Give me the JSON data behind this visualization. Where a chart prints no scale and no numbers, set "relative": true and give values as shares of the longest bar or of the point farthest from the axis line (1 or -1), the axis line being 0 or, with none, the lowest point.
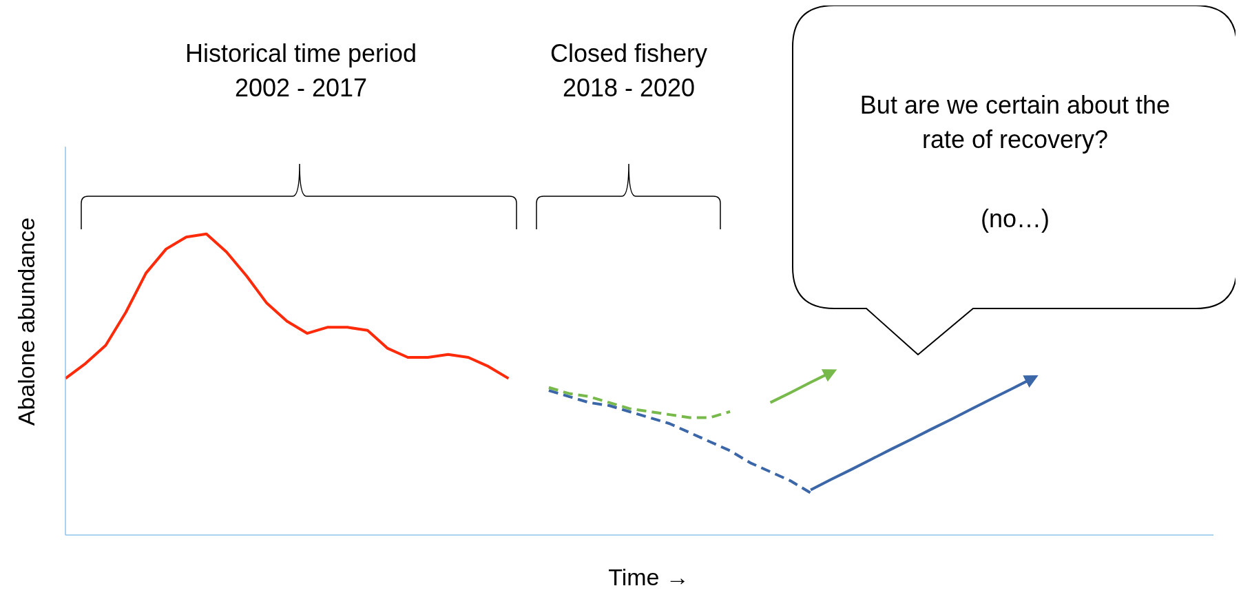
{
  "chart_data": {
    "type": "line",
    "relative": true,
    "xlabel": "Time →",
    "ylabel": "Abalone abundance",
    "grid": false,
    "legend": false,
    "marker": "none",
    "annotations": [
      "Historical time period\n2002 - 2017",
      "Closed fishery\n2018 - 2020",
      "But are we certain about the\nrate of recovery?",
      "(no…)"
    ],
    "categories": [
      null,
      null,
      null,
      null,
      null,
      null,
      null,
      null,
      null,
      null,
      null,
      null,
      null,
      null,
      null,
      null,
      null,
      null,
      null,
      null,
      null,
      null,
      null,
      null,
      null,
      null,
      null,
      null,
      null,
      null,
      null,
      null,
      null,
      null,
      null,
      null,
      null,
      null,
      null,
      null,
      null,
      null,
      null,
      null,
      null,
      null,
      null,
      null,
      null,
      null,
      null,
      null,
      null,
      null,
      null,
      null,
      null,
      null
    ],
    "series": [
      {
        "color": "#fe2a0a",
        "line_style": "solid",
        "values": [
          0.52,
          0.57,
          0.63,
          0.74,
          0.87,
          0.95,
          0.99,
          1,
          0.94,
          0.86,
          0.77,
          0.71,
          0.67,
          0.69,
          0.69,
          0.68,
          0.62,
          0.59,
          0.59,
          0.6,
          0.59,
          0.56,
          0.52,
          null,
          null,
          null,
          null,
          null,
          null,
          null,
          null,
          null,
          null,
          null,
          null,
          null,
          null,
          null,
          null,
          null,
          null,
          null,
          null,
          null,
          null,
          null,
          null,
          null,
          null,
          null,
          null,
          null,
          null,
          null,
          null,
          null,
          null,
          null
        ]
      },
      {
        "color": "#77b94a",
        "line_style": "dashed",
        "values": [
          null,
          null,
          null,
          null,
          null,
          null,
          null,
          null,
          null,
          null,
          null,
          null,
          null,
          null,
          null,
          null,
          null,
          null,
          null,
          null,
          null,
          null,
          null,
          null,
          0.49,
          0.47,
          0.46,
          0.44,
          0.42,
          0.41,
          0.4,
          0.39,
          0.39,
          0.41,
          null,
          null,
          null,
          null,
          null,
          null,
          null,
          null,
          null,
          null,
          null,
          null,
          null,
          null,
          null,
          null,
          null,
          null,
          null,
          null,
          null,
          null,
          null,
          null
        ]
      },
      {
        "color": "#77b94a",
        "line_style": "solid",
        "values": [
          null,
          null,
          null,
          null,
          null,
          null,
          null,
          null,
          null,
          null,
          null,
          null,
          null,
          null,
          null,
          null,
          null,
          null,
          null,
          null,
          null,
          null,
          null,
          null,
          null,
          null,
          null,
          null,
          null,
          null,
          null,
          null,
          null,
          null,
          null,
          0.44,
          0.473,
          0.507,
          0.54,
          null,
          null,
          null,
          null,
          null,
          null,
          null,
          null,
          null,
          null,
          null,
          null,
          null,
          null,
          null,
          null,
          null,
          null,
          null
        ]
      },
      {
        "color": "#3b66a8",
        "line_style": "dashed",
        "values": [
          null,
          null,
          null,
          null,
          null,
          null,
          null,
          null,
          null,
          null,
          null,
          null,
          null,
          null,
          null,
          null,
          null,
          null,
          null,
          null,
          null,
          null,
          null,
          null,
          0.48,
          0.46,
          0.44,
          0.43,
          0.41,
          0.39,
          0.37,
          0.34,
          0.31,
          0.28,
          0.24,
          0.21,
          0.18,
          0.14,
          null,
          null,
          null,
          null,
          null,
          null,
          null,
          null,
          null,
          null,
          null,
          null,
          null,
          null,
          null,
          null,
          null,
          null,
          null,
          null
        ]
      },
      {
        "color": "#3b66a8",
        "line_style": "solid",
        "values": [
          null,
          null,
          null,
          null,
          null,
          null,
          null,
          null,
          null,
          null,
          null,
          null,
          null,
          null,
          null,
          null,
          null,
          null,
          null,
          null,
          null,
          null,
          null,
          null,
          null,
          null,
          null,
          null,
          null,
          null,
          null,
          null,
          null,
          null,
          null,
          null,
          null,
          0.15,
          0.184,
          0.217,
          0.251,
          0.285,
          0.318,
          0.352,
          0.385,
          0.419,
          0.453,
          0.486,
          0.52,
          null,
          null,
          null,
          null,
          null,
          null,
          null,
          null,
          null
        ]
      }
    ]
  }
}
